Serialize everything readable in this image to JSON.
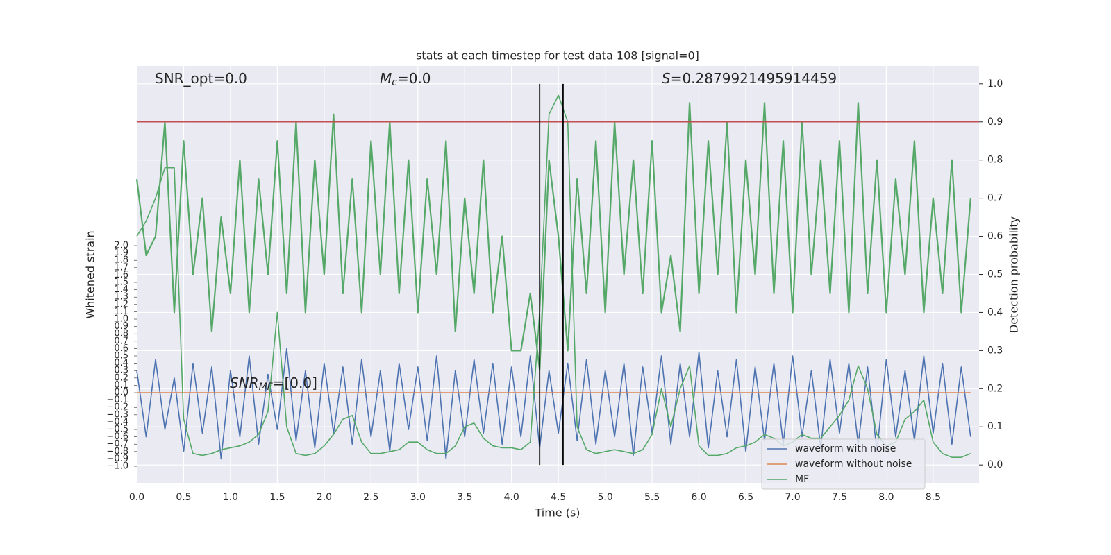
{
  "chart_data": {
    "type": "line",
    "title": "stats at each timestep for test data 108 [signal=0]",
    "xlabel": "Time (s)",
    "ylabel": "Whitened strain",
    "y2label": "Detection probability",
    "grid": true,
    "legend": "lower right",
    "annotations": [
      {
        "text": "SNR_opt=0.0"
      },
      {
        "symbol": "M",
        "sub": "c",
        "rest": "=0.0"
      },
      {
        "symbol": "S",
        "rest": "=0.2879921495914459"
      },
      {
        "symbol": "SNR",
        "sub": "MF",
        "rest": "=[0.0]"
      }
    ],
    "hlines": [
      {
        "value": 0.9,
        "color": "#c44e52",
        "axis": "y2"
      }
    ],
    "vlines": [
      4.3,
      4.55
    ],
    "xlim": [
      0,
      8.99
    ],
    "ylim": [
      -1.226,
      4.443
    ],
    "y2lim": [
      -0.047,
      1.047
    ],
    "xticks": [
      {
        "value": 0,
        "label": "0.0"
      },
      0.5,
      {
        "value": 1,
        "label": "1.0"
      },
      1.5,
      {
        "value": 2,
        "label": "2.0"
      },
      2.5,
      {
        "value": 3,
        "label": "3.0"
      },
      3.5,
      {
        "value": 4,
        "label": "4.0"
      },
      4.5,
      {
        "value": 5,
        "label": "5.0"
      },
      5.5,
      {
        "value": 6,
        "label": "6.0"
      },
      6.5,
      {
        "value": 7,
        "label": "7.0"
      },
      7.5,
      {
        "value": 8,
        "label": "8.0"
      },
      8.5
    ],
    "yticks": [
      {
        "value": -1.0,
        "label": "−1.0"
      },
      {
        "value": -0.9,
        "label": "−0.9"
      },
      {
        "value": -0.8,
        "label": "−0.8"
      },
      {
        "value": -0.7,
        "label": "−0.7"
      },
      {
        "value": -0.6,
        "label": "−0.6"
      },
      {
        "value": -0.5,
        "label": "−0.5"
      },
      {
        "value": -0.4,
        "label": "−0.4"
      },
      {
        "value": -0.3,
        "label": "−0.3"
      },
      {
        "value": -0.2,
        "label": "−0.2"
      },
      {
        "value": -0.1,
        "label": "−0.1"
      },
      {
        "value": 0,
        "label": "0.0"
      },
      0.1,
      0.2,
      0.3,
      0.4,
      0.5,
      0.6,
      0.7,
      0.8,
      0.9,
      {
        "value": 1,
        "label": "1.0"
      },
      1.1,
      1.2,
      1.3,
      1.4,
      1.5,
      1.6,
      1.7,
      1.8,
      1.9,
      {
        "value": 2,
        "label": "2.0"
      }
    ],
    "y2ticks": [
      {
        "value": 0,
        "label": "0.0"
      },
      0.1,
      0.2,
      0.3,
      0.4,
      0.5,
      0.6,
      0.7,
      0.8,
      0.9,
      {
        "value": 1,
        "label": "1.0"
      }
    ],
    "x": [
      0,
      0.1,
      0.2,
      0.3,
      0.4,
      0.5,
      0.6,
      0.7,
      0.8,
      0.9,
      1,
      1.1,
      1.2,
      1.3,
      1.4,
      1.5,
      1.6,
      1.7,
      1.8,
      1.9,
      2,
      2.1,
      2.2,
      2.3,
      2.4,
      2.5,
      2.6,
      2.7,
      2.8,
      2.9,
      3,
      3.1,
      3.2,
      3.3,
      3.4,
      3.5,
      3.6,
      3.7,
      3.8,
      3.9,
      4,
      4.1,
      4.2,
      4.3,
      4.4,
      4.5,
      4.6,
      4.7,
      4.8,
      4.9,
      5,
      5.1,
      5.2,
      5.3,
      5.4,
      5.5,
      5.6,
      5.7,
      5.8,
      5.9,
      6,
      6.1,
      6.2,
      6.3,
      6.4,
      6.5,
      6.6,
      6.7,
      6.8,
      6.9,
      7,
      7.1,
      7.2,
      7.3,
      7.4,
      7.5,
      7.6,
      7.7,
      7.8,
      7.9,
      8,
      8.1,
      8.2,
      8.3,
      8.4,
      8.5,
      8.6,
      8.7,
      8.8,
      8.9
    ],
    "series": [
      {
        "color": "#55a868",
        "axis": "y2",
        "values": [
          0.75,
          0.55,
          0.6,
          0.9,
          0.4,
          0.85,
          0.5,
          0.7,
          0.35,
          0.65,
          0.45,
          0.8,
          0.4,
          0.75,
          0.5,
          0.85,
          0.45,
          0.9,
          0.4,
          0.8,
          0.5,
          0.92,
          0.45,
          0.75,
          0.4,
          0.85,
          0.5,
          0.9,
          0.45,
          0.8,
          0.4,
          0.75,
          0.5,
          0.85,
          0.35,
          0.7,
          0.45,
          0.8,
          0.4,
          0.6,
          0.3,
          0.3,
          0.45,
          0.25,
          0.8,
          0.6,
          0.3,
          0.75,
          0.45,
          0.85,
          0.4,
          0.9,
          0.5,
          0.8,
          0.45,
          0.85,
          0.4,
          0.55,
          0.35,
          0.95,
          0.45,
          0.85,
          0.5,
          0.9,
          0.4,
          0.8,
          0.5,
          0.95,
          0.45,
          0.85,
          0.4,
          0.9,
          0.5,
          0.8,
          0.45,
          0.85,
          0.4,
          0.95,
          0.45,
          0.8,
          0.4,
          0.75,
          0.5,
          0.85,
          0.4,
          0.7,
          0.45,
          0.8,
          0.4,
          0.7
        ]
      },
      {
        "name": "waveform with noise",
        "color": "#4c72b0",
        "values": [
          0.3,
          -0.6,
          0.45,
          -0.5,
          0.2,
          -0.8,
          0.4,
          -0.55,
          0.35,
          -0.9,
          0.3,
          -0.6,
          0.5,
          -0.7,
          0.25,
          -0.5,
          0.6,
          -0.65,
          0.3,
          -0.75,
          0.4,
          -0.55,
          0.35,
          -0.7,
          0.45,
          -0.6,
          0.3,
          -0.8,
          0.4,
          -0.5,
          0.35,
          -0.65,
          0.5,
          -0.9,
          0.3,
          -0.6,
          0.45,
          -0.55,
          0.4,
          -0.7,
          0.35,
          -0.6,
          0.5,
          -0.75,
          0.3,
          -0.55,
          0.4,
          -0.65,
          0.45,
          -0.7,
          0.3,
          -0.6,
          0.4,
          -0.85,
          0.35,
          -0.55,
          0.5,
          -0.7,
          0.4,
          -0.6,
          0.55,
          -0.75,
          0.3,
          -0.6,
          0.45,
          -0.8,
          0.35,
          -0.65,
          0.4,
          -0.7,
          0.5,
          -0.6,
          0.3,
          -0.75,
          0.45,
          -0.55,
          0.4,
          -0.7,
          0.35,
          -0.8,
          0.45,
          -0.6,
          0.3,
          -0.65,
          0.5,
          -0.55,
          0.4,
          -0.7,
          0.35,
          -0.6
        ]
      },
      {
        "name": "waveform without noise",
        "color": "#dd8452",
        "values": [
          0,
          0,
          0,
          0,
          0,
          0,
          0,
          0,
          0,
          0,
          0,
          0,
          0,
          0,
          0,
          0,
          0,
          0,
          0,
          0,
          0,
          0,
          0,
          0,
          0,
          0,
          0,
          0,
          0,
          0,
          0,
          0,
          0,
          0,
          0,
          0,
          0,
          0,
          0,
          0,
          0,
          0,
          0,
          0,
          0,
          0,
          0,
          0,
          0,
          0,
          0,
          0,
          0,
          0,
          0,
          0,
          0,
          0,
          0,
          0,
          0,
          0,
          0,
          0,
          0,
          0,
          0,
          0,
          0,
          0,
          0,
          0,
          0,
          0,
          0,
          0,
          0,
          0,
          0,
          0,
          0,
          0,
          0,
          0,
          0,
          0,
          0,
          0,
          0,
          0
        ]
      },
      {
        "name": "MF",
        "color": "#55a868",
        "axis": "y2",
        "values": [
          0.6,
          0.64,
          0.7,
          0.78,
          0.78,
          0.12,
          0.03,
          0.025,
          0.03,
          0.04,
          0.045,
          0.05,
          0.06,
          0.08,
          0.14,
          0.4,
          0.1,
          0.03,
          0.025,
          0.03,
          0.05,
          0.08,
          0.12,
          0.13,
          0.06,
          0.03,
          0.03,
          0.035,
          0.04,
          0.06,
          0.06,
          0.04,
          0.03,
          0.03,
          0.05,
          0.1,
          0.11,
          0.07,
          0.05,
          0.045,
          0.045,
          0.04,
          0.06,
          0.4,
          0.92,
          0.97,
          0.9,
          0.1,
          0.04,
          0.03,
          0.035,
          0.04,
          0.035,
          0.03,
          0.04,
          0.08,
          0.2,
          0.1,
          0.2,
          0.26,
          0.05,
          0.025,
          0.025,
          0.03,
          0.045,
          0.05,
          0.06,
          0.08,
          0.07,
          0.05,
          0.06,
          0.08,
          0.07,
          0.07,
          0.1,
          0.13,
          0.17,
          0.26,
          0.2,
          0.08,
          0.05,
          0.06,
          0.12,
          0.14,
          0.17,
          0.06,
          0.03,
          0.02,
          0.02,
          0.03
        ]
      }
    ]
  }
}
